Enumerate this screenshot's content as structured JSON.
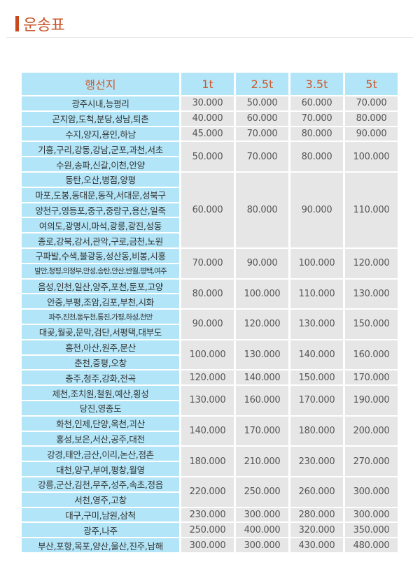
{
  "title": "운송표",
  "colors": {
    "accent": "#c9481c",
    "header_bg": "#b2e5f7",
    "price_bg": "#e6e6e6",
    "header_text": "#d0562a"
  },
  "table": {
    "headers": [
      "행선지",
      "1t",
      "2.5t",
      "3.5t",
      "5t"
    ],
    "groups": [
      {
        "destinations": [
          "광주시내,능평리"
        ],
        "prices": [
          "30.000",
          "50.000",
          "60.000",
          "70.000"
        ]
      },
      {
        "destinations": [
          "곤지암,도척,분당,성남,퇴촌"
        ],
        "prices": [
          "40.000",
          "60.000",
          "70.000",
          "80.000"
        ]
      },
      {
        "destinations": [
          "수지,양지,용인,하남"
        ],
        "prices": [
          "45.000",
          "70.000",
          "80.000",
          "90.000"
        ]
      },
      {
        "destinations": [
          "기흥,구리,강동,강남,군포,과천,서초",
          "수원,송파,신갈,이천,안양"
        ],
        "prices": [
          "50.000",
          "70.000",
          "80.000",
          "100.000"
        ]
      },
      {
        "destinations": [
          "동탄,오산,병점,양평",
          "마포,도봉,동대문,동작,서대문,성북구",
          "양천구,영등포,중구,중랑구,용산,일죽",
          "여의도,광명시,마석,광릉,광진,성동",
          "종로,강북,강서,관악,구로,금천,노원"
        ],
        "prices": [
          "60.000",
          "80.000",
          "90.000",
          "110.000"
        ]
      },
      {
        "destinations": [
          "구파발,수색,불광동,성산동,비봉,시흥",
          "발안,청평,의정부,안성,송탄,안산,반월,평택,여주"
        ],
        "prices": [
          "70.000",
          "90.000",
          "100.000",
          "120.000"
        ]
      },
      {
        "destinations": [
          "음성,인천,일산,양주,포천,둔포,고양",
          "안중,부평,조암,김포,부천,시화"
        ],
        "prices": [
          "80.000",
          "100.000",
          "110.000",
          "130.000"
        ]
      },
      {
        "destinations": [
          "파주,진천,동두천,통진,가평,하성,천안",
          "대곶,월곶,문막,검단,서평택,대부도"
        ],
        "prices": [
          "90.000",
          "120.000",
          "130.000",
          "150.000"
        ]
      },
      {
        "destinations": [
          "홍천,아산,원주,문산",
          "춘천,증평,오창"
        ],
        "prices": [
          "100.000",
          "130.000",
          "140.000",
          "160.000"
        ]
      },
      {
        "destinations": [
          "충주,청주,강화,전곡"
        ],
        "prices": [
          "120.000",
          "140.000",
          "150.000",
          "170.000"
        ]
      },
      {
        "destinations": [
          "제천,조치원,철원,예산,횡성",
          "당진,영종도"
        ],
        "prices": [
          "130.000",
          "160.000",
          "170.000",
          "190.000"
        ]
      },
      {
        "destinations": [
          "화천,인제,단양,옥천,괴산",
          "홍성,보은,서산,공주,대전"
        ],
        "prices": [
          "140.000",
          "170.000",
          "180.000",
          "200.000"
        ]
      },
      {
        "destinations": [
          "강경,태안,금산,이리,논산,점촌",
          "대천,양구,부여,평창,월영"
        ],
        "prices": [
          "180.000",
          "210.000",
          "230.000",
          "270.000"
        ]
      },
      {
        "destinations": [
          "강릉,군산,김천,무주,성주,속초,정읍",
          "서천,영주,고창"
        ],
        "prices": [
          "220.000",
          "250.000",
          "260.000",
          "300.000"
        ]
      },
      {
        "destinations": [
          "대구,구미,남원,삼척"
        ],
        "prices": [
          "230.000",
          "300.000",
          "280.000",
          "300.000"
        ]
      },
      {
        "destinations": [
          "광주,나주"
        ],
        "prices": [
          "250.000",
          "400.000",
          "320.000",
          "350.000"
        ]
      },
      {
        "destinations": [
          "부산,포항,목포,양산,울산,진주,남해"
        ],
        "prices": [
          "300.000",
          "300.000",
          "430.000",
          "480.000"
        ]
      }
    ]
  }
}
